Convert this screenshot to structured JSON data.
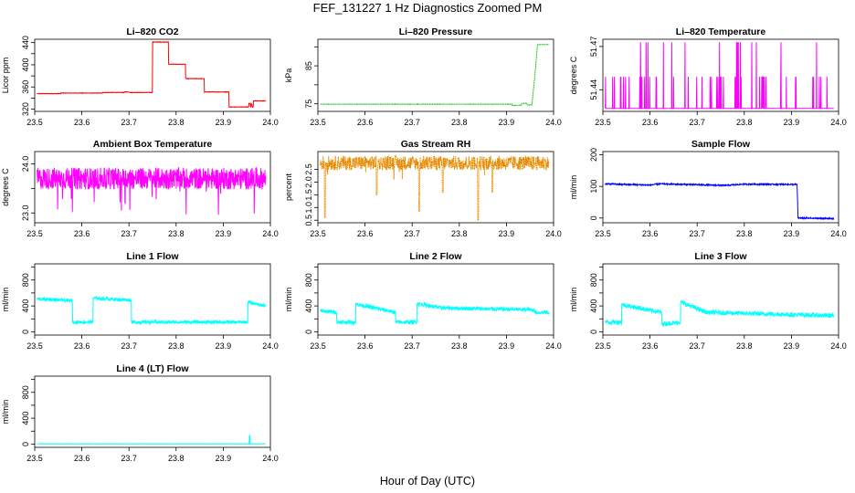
{
  "figure": {
    "title": "FEF_131227  1 Hz Diagnostics Zoomed PM",
    "xlabel": "Hour of Day (UTC)"
  },
  "chart_data": [
    {
      "type": "line",
      "title": "Li–820 CO2",
      "ylabel": "Licor ppm",
      "color": "#ff0000",
      "xlim": [
        23.5,
        24.0
      ],
      "ylim": [
        316,
        446
      ],
      "xticks": [
        23.5,
        23.6,
        23.7,
        23.8,
        23.9,
        24.0
      ],
      "yticks": [
        320,
        340,
        360,
        380,
        400,
        420,
        440
      ],
      "ytick_labels": [
        "320",
        "",
        "360",
        "",
        "400",
        "",
        "440"
      ],
      "series": [
        {
          "x": [
            23.5,
            23.555,
            23.555,
            23.645,
            23.645,
            23.69,
            23.69,
            23.7,
            23.702,
            23.75,
            23.75,
            23.784,
            23.784,
            23.82,
            23.82,
            23.86,
            23.86,
            23.912,
            23.912,
            23.954,
            23.954,
            23.958,
            23.958,
            23.96,
            23.962,
            23.964,
            23.964,
            23.99
          ],
          "y": [
            348,
            348,
            349,
            349,
            350,
            350,
            351,
            351,
            350,
            350,
            441,
            441,
            401,
            401,
            375,
            375,
            351,
            351,
            324,
            324,
            330,
            330,
            322,
            330,
            323,
            325,
            335,
            335
          ],
          "noise": 0.4
        }
      ]
    },
    {
      "type": "line",
      "title": "Li–820 Pressure",
      "ylabel": "kPa",
      "color": "#00cc00",
      "xlim": [
        23.5,
        24.0
      ],
      "ylim": [
        73,
        92
      ],
      "xticks": [
        23.5,
        23.6,
        23.7,
        23.8,
        23.9,
        24.0
      ],
      "yticks": [
        75,
        80,
        85,
        90
      ],
      "ytick_labels": [
        "75",
        "",
        "85",
        ""
      ],
      "series": [
        {
          "x": [
            23.5,
            23.912,
            23.912,
            23.932,
            23.932,
            23.944,
            23.944,
            23.954,
            23.96,
            23.966,
            23.99
          ],
          "y": [
            74.9,
            74.9,
            74.6,
            74.6,
            75.1,
            75.1,
            74.7,
            74.7,
            82,
            90.6,
            90.6
          ],
          "noise": 0.04,
          "dotted": true
        }
      ]
    },
    {
      "type": "line",
      "title": "Li–820 Temperature",
      "ylabel": "degrees C",
      "color": "#ff00ff",
      "xlim": [
        23.5,
        24.0
      ],
      "ylim": [
        51.425,
        51.475
      ],
      "xticks": [
        23.5,
        23.6,
        23.7,
        23.8,
        23.9,
        24.0
      ],
      "yticks": [
        51.44,
        51.47
      ],
      "ytick_labels": [
        "51.44",
        "51.47"
      ],
      "series": [
        {
          "base": 51.427,
          "levels": [
            51.449,
            51.473
          ],
          "digital": true
        }
      ]
    },
    {
      "type": "line",
      "title": "Ambient Box Temperature",
      "ylabel": "degrees C",
      "color": "#ff00ff",
      "xlim": [
        23.5,
        24.0
      ],
      "ylim": [
        22.8,
        24.25
      ],
      "xticks": [
        23.5,
        23.6,
        23.7,
        23.8,
        23.9,
        24.0
      ],
      "yticks": [
        23.0,
        23.5,
        24.0
      ],
      "ytick_labels": [
        "23.0",
        "",
        "24.0"
      ],
      "series": [
        {
          "base": 23.7,
          "noise": 0.22,
          "dips": 0.5
        }
      ]
    },
    {
      "type": "line",
      "title": "Gas Stream RH",
      "ylabel": "percent",
      "color": "#ff9900",
      "xlim": [
        23.5,
        24.0
      ],
      "ylim": [
        0.4,
        3.2
      ],
      "xticks": [
        23.5,
        23.6,
        23.7,
        23.8,
        23.9,
        24.0
      ],
      "yticks": [
        0.5,
        1.0,
        1.5,
        2.0,
        2.5
      ],
      "ytick_labels": [
        "0.5",
        "1.0",
        "1.5",
        "2.0",
        "2.5"
      ],
      "series": [
        {
          "base": 2.75,
          "noise": 0.28,
          "dips_at": [
            [
              23.515,
              0.6
            ],
            [
              23.625,
              1.5
            ],
            [
              23.715,
              0.85
            ],
            [
              23.765,
              1.6
            ],
            [
              23.84,
              0.5
            ],
            [
              23.87,
              1.6
            ]
          ],
          "dotted": true
        }
      ]
    },
    {
      "type": "line",
      "title": "Sample Flow",
      "ylabel": "ml/min",
      "color": "#0000ff",
      "xlim": [
        23.5,
        24.0
      ],
      "ylim": [
        -15,
        210
      ],
      "xticks": [
        23.5,
        23.6,
        23.7,
        23.8,
        23.9,
        24.0
      ],
      "yticks": [
        0,
        100,
        200
      ],
      "ytick_labels": [
        "0",
        "100",
        "200"
      ],
      "series": [
        {
          "x": [
            23.5,
            23.6,
            23.62,
            23.76,
            23.8,
            23.9,
            23.912,
            23.914,
            23.99
          ],
          "y": [
            108,
            104,
            108,
            103,
            107,
            106,
            106,
            0,
            -2
          ],
          "noise": 2
        }
      ]
    },
    {
      "type": "line",
      "title": "Line 1 Flow",
      "ylabel": "ml/min",
      "color": "#00ffff",
      "xlim": [
        23.5,
        24.0
      ],
      "ylim": [
        -50,
        1050
      ],
      "xticks": [
        23.5,
        23.6,
        23.7,
        23.8,
        23.9,
        24.0
      ],
      "yticks": [
        0,
        200,
        400,
        600,
        800,
        1000
      ],
      "ytick_labels": [
        "0",
        "",
        "400",
        "",
        "800",
        ""
      ],
      "series": [
        {
          "x": [
            23.5,
            23.502,
            23.502,
            23.58,
            23.58,
            23.624,
            23.624,
            23.705,
            23.705,
            23.952,
            23.952,
            23.99
          ],
          "y": [
            150,
            150,
            510,
            480,
            150,
            150,
            520,
            490,
            150,
            150,
            460,
            400
          ],
          "noise": 25
        }
      ]
    },
    {
      "type": "line",
      "title": "Line 2 Flow",
      "ylabel": "ml/min",
      "color": "#00ffff",
      "xlim": [
        23.5,
        24.0
      ],
      "ylim": [
        -50,
        1050
      ],
      "xticks": [
        23.5,
        23.6,
        23.7,
        23.8,
        23.9,
        24.0
      ],
      "yticks": [
        0,
        200,
        400,
        600,
        800,
        1000
      ],
      "ytick_labels": [
        "0",
        "",
        "400",
        "",
        "800",
        ""
      ],
      "series": [
        {
          "x": [
            23.5,
            23.54,
            23.54,
            23.58,
            23.58,
            23.665,
            23.665,
            23.71,
            23.71,
            23.76,
            23.96,
            23.96,
            23.99
          ],
          "y": [
            330,
            300,
            150,
            150,
            430,
            300,
            150,
            150,
            440,
            370,
            340,
            300,
            300
          ],
          "noise": 30
        }
      ]
    },
    {
      "type": "line",
      "title": "Line 3 Flow",
      "ylabel": "ml/min",
      "color": "#00ffff",
      "xlim": [
        23.5,
        24.0
      ],
      "ylim": [
        -50,
        1050
      ],
      "xticks": [
        23.5,
        23.6,
        23.7,
        23.8,
        23.9,
        24.0
      ],
      "yticks": [
        0,
        200,
        400,
        600,
        800,
        1000
      ],
      "ytick_labels": [
        "0",
        "",
        "400",
        "",
        "800",
        ""
      ],
      "series": [
        {
          "x": [
            23.5,
            23.502,
            23.502,
            23.54,
            23.54,
            23.625,
            23.625,
            23.665,
            23.665,
            23.72,
            23.99
          ],
          "y": [
            350,
            150,
            150,
            150,
            420,
            300,
            120,
            150,
            460,
            300,
            250
          ],
          "noise": 35
        }
      ]
    },
    {
      "type": "line",
      "title": "Line 4 (LT) Flow",
      "ylabel": "ml/min",
      "color": "#00ffff",
      "xlim": [
        23.5,
        24.0
      ],
      "ylim": [
        -50,
        1050
      ],
      "xticks": [
        23.5,
        23.6,
        23.7,
        23.8,
        23.9,
        24.0
      ],
      "yticks": [
        0,
        200,
        400,
        600,
        800,
        1000
      ],
      "ytick_labels": [
        "0",
        "",
        "400",
        "",
        "800",
        ""
      ],
      "series": [
        {
          "x": [
            23.5,
            23.955,
            23.955,
            23.957,
            23.957,
            23.99
          ],
          "y": [
            5,
            5,
            130,
            130,
            5,
            5
          ],
          "noise": 2
        }
      ]
    }
  ]
}
